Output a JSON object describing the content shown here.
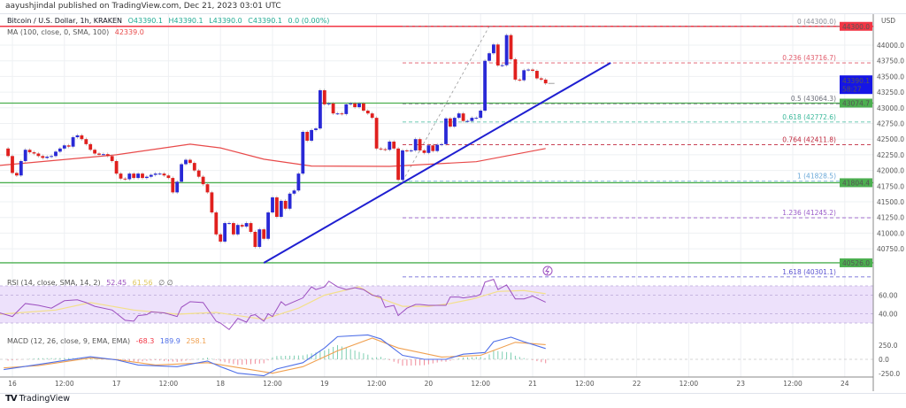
{
  "publish_line": "aayushjindal published on TradingView.com, Dec 21, 2023 03:01 UTC",
  "legend": {
    "symbol": "Bitcoin / U.S. Dollar, 1h, KRAKEN",
    "open": "O43390.1",
    "high": "H43390.1",
    "low": "L43390.0",
    "close": "C43390.1",
    "change": "0.0 (0.00%)",
    "ma_label": "MA (100, close, 0, SMA, 100)",
    "ma_value": "42339.0",
    "rsi_label": "RSI (14, close, SMA, 14, 2)",
    "rsi_value": "52.45",
    "rsi_sma_value": "61.56",
    "rsi_icons": "∅ ∅",
    "macd_label": "MACD (12, 26, close, 9, EMA, EMA)",
    "macd_hist_value": "-68.3",
    "macd_value": "189.9",
    "macd_signal_value": "258.1"
  },
  "price_axis": {
    "currency": "USD",
    "ticks": [
      "44000.0",
      "43750.0",
      "43500.0",
      "43250.0",
      "43000.0",
      "42750.0",
      "42500.0",
      "42250.0",
      "42000.0",
      "41750.0",
      "41500.0",
      "41250.0",
      "41000.0",
      "40750.0"
    ],
    "last_price": "43390.1",
    "countdown": "58:27",
    "red_level_label": "44300.0",
    "green_level_labels": [
      "43074.7",
      "41804.4",
      "40526.0"
    ]
  },
  "rsi_axis": {
    "ticks": [
      "60.00",
      "40.00"
    ]
  },
  "macd_axis": {
    "ticks": [
      "250.0",
      "0.0",
      "-250.0"
    ]
  },
  "time_axis": {
    "ticks": [
      "16",
      "12:00",
      "17",
      "12:00",
      "18",
      "12:00",
      "19",
      "12:00",
      "20",
      "12:00",
      "21",
      "12:00",
      "22",
      "12:00",
      "23",
      "12:00",
      "24"
    ]
  },
  "logo_text": "TradingView",
  "colors": {
    "up": "#2929d6",
    "down": "#e0201e",
    "ma": "#e84a4a",
    "trendline": "#1f1fd1",
    "support": "#4caf50",
    "resistance": "#f23645",
    "rsi": "#9c4fc0",
    "rsi_sma": "#f3e08a",
    "rsi_band": "#ede1fb",
    "macd": "#4f6fe8",
    "signal": "#f0a050",
    "hist_up": "#7fcfb2",
    "hist_down": "#f08a9a",
    "last_price_bg": "#1515e6"
  },
  "chart_data": {
    "type": "candlestick",
    "interval": "1h",
    "first_bar": "15 23:00",
    "first_open": 42350,
    "closes": [
      42230,
      41960,
      41920,
      42150,
      42330,
      42290,
      42270,
      42230,
      42200,
      42220,
      42230,
      42300,
      42350,
      42400,
      42380,
      42530,
      42560,
      42500,
      42420,
      42330,
      42270,
      42250,
      42260,
      42230,
      42150,
      41950,
      41870,
      41860,
      41950,
      41880,
      41950,
      41880,
      41900,
      41930,
      41950,
      41950,
      41920,
      41880,
      41650,
      41820,
      42100,
      42170,
      42120,
      42000,
      41900,
      41780,
      41650,
      41330,
      40980,
      40865,
      41160,
      41160,
      40980,
      41130,
      41105,
      41160,
      41020,
      40780,
      41060,
      40910,
      41330,
      41570,
      41260,
      41515,
      41390,
      41630,
      41680,
      41950,
      42616,
      42475,
      42645,
      42670,
      43280,
      43055,
      43070,
      42910,
      42910,
      42900,
      43055,
      43070,
      43010,
      43070,
      42955,
      42910,
      42840,
      42350,
      42340,
      42330,
      42460,
      42350,
      41850,
      42320,
      42310,
      42320,
      42500,
      42320,
      42280,
      42400,
      42310,
      42410,
      42420,
      42830,
      42700,
      42840,
      42910,
      42790,
      42790,
      42840,
      42840,
      42955,
      43750,
      43870,
      44010,
      43675,
      43680,
      44160,
      43775,
      43450,
      43440,
      43600,
      43610,
      43590,
      43470,
      43450,
      43390
    ],
    "ylim": [
      40400,
      44450
    ],
    "ma100": [
      [
        "15 21:00",
        42080
      ],
      [
        "17 00:00",
        42250
      ],
      [
        "17 17:00",
        42420
      ],
      [
        "18 00:00",
        42360
      ],
      [
        "18 10:00",
        42180
      ],
      [
        "18 21:00",
        42070
      ],
      [
        "19 15:00",
        42065
      ],
      [
        "20 11:00",
        42140
      ],
      [
        "21 03:00",
        42350
      ]
    ],
    "horizontal_levels": {
      "resistance": 44300,
      "supports": [
        43074.7,
        41804.4,
        40526.0
      ]
    },
    "trendline": [
      [
        "18 10:00",
        40526
      ],
      [
        "21 18:00",
        43718
      ]
    ],
    "fibonacci": {
      "from": [
        "19 18:00",
        41828.5
      ],
      "to": [
        "20 14:00",
        44300.0
      ],
      "levels": [
        {
          "label": "0 (44300.0)",
          "price": 44300.0,
          "color": "#8a8d96"
        },
        {
          "label": "0.236 (43716.7)",
          "price": 43716.7,
          "color": "#e05a6a"
        },
        {
          "label": "0.5 (43064.3)",
          "price": 43064.3,
          "color": "#6b6e78"
        },
        {
          "label": "0.618 (42772.6)",
          "price": 42772.6,
          "color": "#3bb89a"
        },
        {
          "label": "0.764 (42411.8)",
          "price": 42411.8,
          "color": "#c0283c"
        },
        {
          "label": "1 (41828.5)",
          "price": 41828.5,
          "color": "#6aa8d8"
        },
        {
          "label": "1.236 (41245.2)",
          "price": 41245.2,
          "color": "#9a5cc8"
        },
        {
          "label": "1.618 (40301.1)",
          "price": 40301.1,
          "color": "#5a52d0"
        }
      ]
    },
    "rsi": {
      "ylim": [
        20,
        80
      ],
      "band": [
        30,
        70
      ],
      "midline": [
        60,
        40
      ],
      "values": [
        [
          "15 21:00",
          41
        ],
        [
          "16 00:00",
          37
        ],
        [
          "16 03:00",
          51
        ],
        [
          "16 06:00",
          49
        ],
        [
          "16 09:00",
          46
        ],
        [
          "16 12:00",
          54
        ],
        [
          "16 15:00",
          55
        ],
        [
          "16 17:00",
          52
        ],
        [
          "16 19:00",
          48
        ],
        [
          "16 23:00",
          44
        ],
        [
          "17 02:00",
          33
        ],
        [
          "17 04:00",
          32
        ],
        [
          "17 05:00",
          38
        ],
        [
          "17 07:00",
          39
        ],
        [
          "17 08:00",
          42
        ],
        [
          "17 11:00",
          41
        ],
        [
          "17 14:00",
          37
        ],
        [
          "17 15:00",
          47
        ],
        [
          "17 17:00",
          53
        ],
        [
          "17 20:00",
          52
        ],
        [
          "17 23:00",
          32
        ],
        [
          "18 00:00",
          30
        ],
        [
          "18 02:00",
          23
        ],
        [
          "18 04:00",
          35
        ],
        [
          "18 06:00",
          31
        ],
        [
          "18 07:00",
          38
        ],
        [
          "18 08:00",
          39
        ],
        [
          "18 10:00",
          32
        ],
        [
          "18 11:00",
          40
        ],
        [
          "18 12:00",
          37
        ],
        [
          "18 14:00",
          53
        ],
        [
          "18 15:00",
          49
        ],
        [
          "18 17:00",
          53
        ],
        [
          "18 19:00",
          57
        ],
        [
          "18 21:00",
          69
        ],
        [
          "18 22:00",
          66
        ],
        [
          "19 00:00",
          69
        ],
        [
          "19 01:00",
          75
        ],
        [
          "19 03:00",
          69
        ],
        [
          "19 05:00",
          66
        ],
        [
          "19 07:00",
          68
        ],
        [
          "19 09:00",
          66
        ],
        [
          "19 11:00",
          60
        ],
        [
          "19 13:00",
          58
        ],
        [
          "19 14:00",
          47
        ],
        [
          "19 16:00",
          49
        ],
        [
          "19 17:00",
          38
        ],
        [
          "19 19:00",
          46
        ],
        [
          "19 21:00",
          50
        ],
        [
          "19 22:00",
          50
        ],
        [
          "20 00:00",
          49
        ],
        [
          "20 02:00",
          49
        ],
        [
          "20 04:00",
          49
        ],
        [
          "20 05:00",
          58
        ],
        [
          "20 07:00",
          58
        ],
        [
          "20 08:00",
          57
        ],
        [
          "20 11:00",
          59
        ],
        [
          "20 12:00",
          61
        ],
        [
          "20 13:00",
          74
        ],
        [
          "20 15:00",
          77
        ],
        [
          "20 16:00",
          66
        ],
        [
          "20 18:00",
          71
        ],
        [
          "20 20:00",
          56
        ],
        [
          "20 22:00",
          56
        ],
        [
          "21 00:00",
          59
        ],
        [
          "21 03:00",
          52.45
        ]
      ],
      "sma": [
        [
          "15 21:00",
          39.5
        ],
        [
          "16 10:00",
          44
        ],
        [
          "16 18:00",
          52
        ],
        [
          "17 04:00",
          44
        ],
        [
          "17 14:00",
          39.5
        ],
        [
          "17 23:00",
          41.4
        ],
        [
          "18 10:00",
          34
        ],
        [
          "18 18:00",
          46
        ],
        [
          "19 00:00",
          60
        ],
        [
          "19 08:00",
          69
        ],
        [
          "19 12:00",
          58
        ],
        [
          "19 18:00",
          48
        ],
        [
          "20 00:00",
          48
        ],
        [
          "20 05:00",
          51
        ],
        [
          "20 10:00",
          55.7
        ],
        [
          "20 16:00",
          64
        ],
        [
          "20 22:00",
          65
        ],
        [
          "21 03:00",
          61.56
        ]
      ]
    },
    "macd": {
      "ylim": [
        -330,
        500
      ],
      "macd": [
        [
          "15 22:00",
          -180
        ],
        [
          "16 06:00",
          -90
        ],
        [
          "16 12:00",
          -20
        ],
        [
          "16 18:00",
          45
        ],
        [
          "17 00:00",
          -10
        ],
        [
          "17 05:00",
          -100
        ],
        [
          "17 14:00",
          -130
        ],
        [
          "17 21:00",
          -30
        ],
        [
          "18 00:00",
          -130
        ],
        [
          "18 04:00",
          -245
        ],
        [
          "18 10:00",
          -290
        ],
        [
          "18 13:00",
          -170
        ],
        [
          "18 19:00",
          -60
        ],
        [
          "19 00:00",
          200
        ],
        [
          "19 03:00",
          400
        ],
        [
          "19 10:00",
          430
        ],
        [
          "19 13:00",
          360
        ],
        [
          "19 18:00",
          70
        ],
        [
          "19 23:00",
          0
        ],
        [
          "20 04:00",
          0
        ],
        [
          "20 08:00",
          90
        ],
        [
          "20 13:00",
          120
        ],
        [
          "20 15:00",
          310
        ],
        [
          "20 19:00",
          390
        ],
        [
          "20 22:00",
          310
        ],
        [
          "21 03:00",
          189.9
        ]
      ],
      "signal": [
        [
          "15 22:00",
          -150
        ],
        [
          "16 06:00",
          -110
        ],
        [
          "16 18:00",
          25
        ],
        [
          "17 00:00",
          -5
        ],
        [
          "17 09:00",
          -100
        ],
        [
          "17 21:00",
          -60
        ],
        [
          "18 02:00",
          -120
        ],
        [
          "18 12:00",
          -245
        ],
        [
          "18 19:00",
          -130
        ],
        [
          "19 03:00",
          150
        ],
        [
          "19 11:00",
          375
        ],
        [
          "19 17:00",
          200
        ],
        [
          "20 03:00",
          40
        ],
        [
          "20 12:00",
          70
        ],
        [
          "20 20:00",
          300
        ],
        [
          "21 03:00",
          258.1
        ]
      ]
    }
  }
}
